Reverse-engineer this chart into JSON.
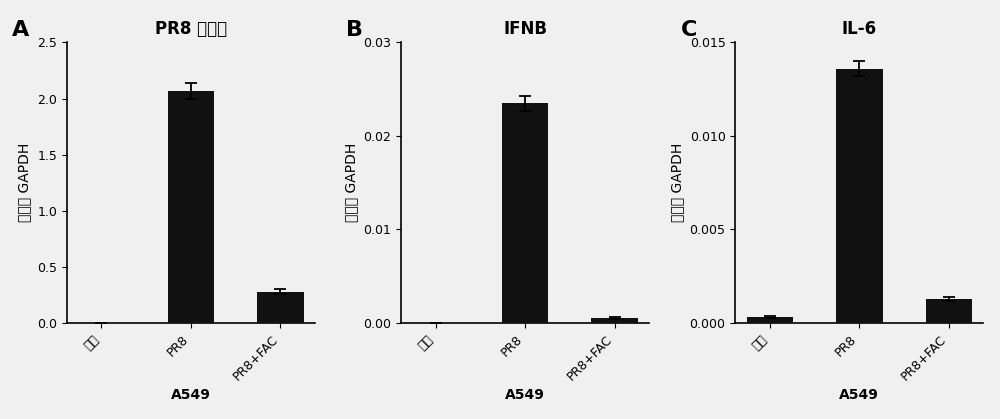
{
  "panels": [
    {
      "label": "A",
      "title": "PR8 拷贝数",
      "xlabel": "A549",
      "ylabel": "相对于 GAPDH",
      "categories": [
        "空白",
        "PR8",
        "PR8+FAC"
      ],
      "values": [
        0.0,
        2.07,
        0.28
      ],
      "errors": [
        0.0,
        0.07,
        0.02
      ],
      "ylim": [
        0,
        2.5
      ],
      "yticks": [
        0.0,
        0.5,
        1.0,
        1.5,
        2.0,
        2.5
      ],
      "yticklabels": [
        "0.0",
        "0.5",
        "1.0",
        "1.5",
        "2.0",
        "2.5"
      ]
    },
    {
      "label": "B",
      "title": "IFNB",
      "xlabel": "A549",
      "ylabel": "相对于 GAPDH",
      "categories": [
        "空白",
        "PR8",
        "PR8+FAC"
      ],
      "values": [
        0.0,
        0.0235,
        0.0005
      ],
      "errors": [
        0.0,
        0.0008,
        0.0001
      ],
      "ylim": [
        0,
        0.03
      ],
      "yticks": [
        0.0,
        0.01,
        0.02,
        0.03
      ],
      "yticklabels": [
        "0.00",
        "0.01",
        "0.02",
        "0.03"
      ]
    },
    {
      "label": "C",
      "title": "IL-6",
      "xlabel": "A549",
      "ylabel": "相对于 GAPDH",
      "categories": [
        "空白",
        "PR8",
        "PR8+FAC"
      ],
      "values": [
        0.0003,
        0.0136,
        0.0013
      ],
      "errors": [
        5e-05,
        0.0004,
        0.0001
      ],
      "ylim": [
        0,
        0.015
      ],
      "yticks": [
        0.0,
        0.005,
        0.01,
        0.015
      ],
      "yticklabels": [
        "0.000",
        "0.005",
        "0.010",
        "0.015"
      ]
    }
  ],
  "bar_color": "#111111",
  "bar_width": 0.52,
  "capsize": 4,
  "background_color": "#f0f0f0",
  "title_fontsize": 12,
  "label_fontsize": 10,
  "tick_fontsize": 9,
  "panel_label_fontsize": 16
}
